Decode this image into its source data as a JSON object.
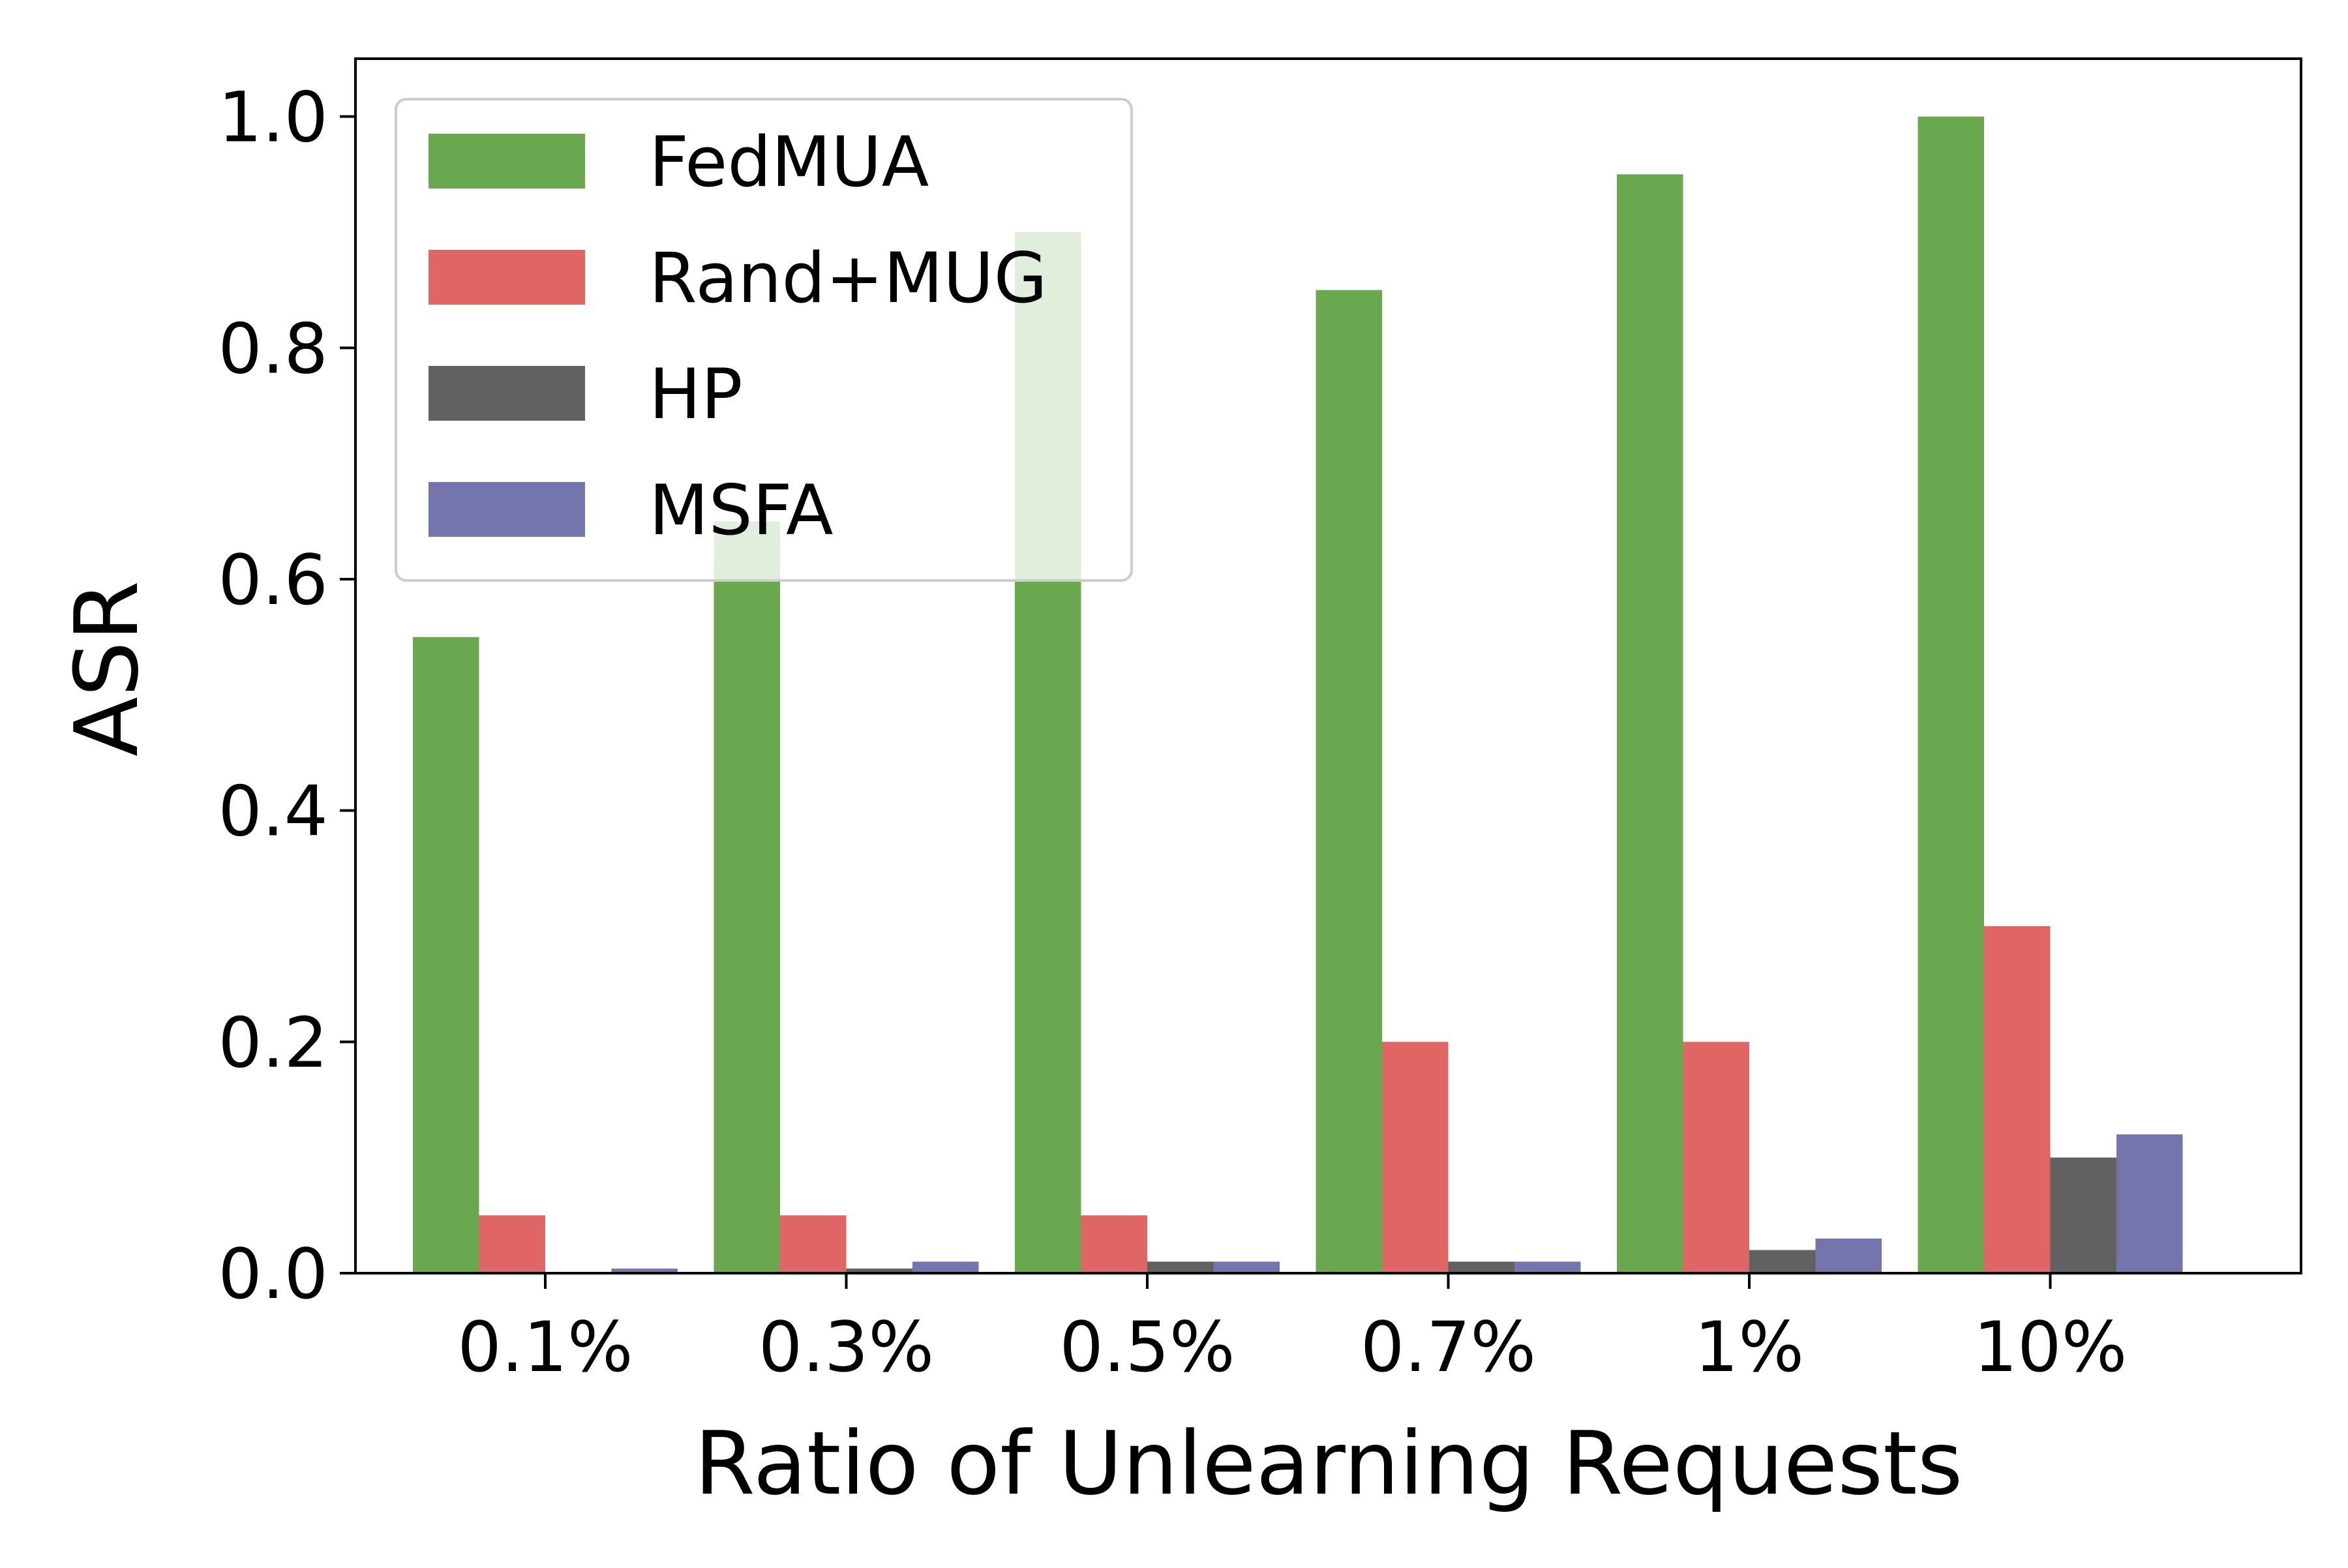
{
  "chart_data": {
    "type": "bar",
    "title": "",
    "xlabel": "Ratio of Unlearning Requests",
    "ylabel": "ASR",
    "categories": [
      "0.1%",
      "0.3%",
      "0.5%",
      "0.7%",
      "1%",
      "10%"
    ],
    "ylim": [
      0,
      1.05
    ],
    "yticks": [
      0.0,
      0.2,
      0.4,
      0.6,
      0.8,
      1.0
    ],
    "ytick_labels": [
      "0.0",
      "0.2",
      "0.4",
      "0.6",
      "0.8",
      "1.0"
    ],
    "grid": false,
    "legend_position": "top-left",
    "series": [
      {
        "name": "FedMUA",
        "color": "#6aa84f",
        "values": [
          0.55,
          0.65,
          0.9,
          0.85,
          0.95,
          1.0
        ]
      },
      {
        "name": "Rand+MUG",
        "color": "#e06666",
        "values": [
          0.05,
          0.05,
          0.05,
          0.2,
          0.2,
          0.3
        ]
      },
      {
        "name": "HP",
        "color": "#616161",
        "values": [
          0.0,
          0.004,
          0.01,
          0.01,
          0.02,
          0.1
        ]
      },
      {
        "name": "MSFA",
        "color": "#7575ad",
        "values": [
          0.004,
          0.01,
          0.01,
          0.01,
          0.03,
          0.12
        ]
      }
    ]
  }
}
